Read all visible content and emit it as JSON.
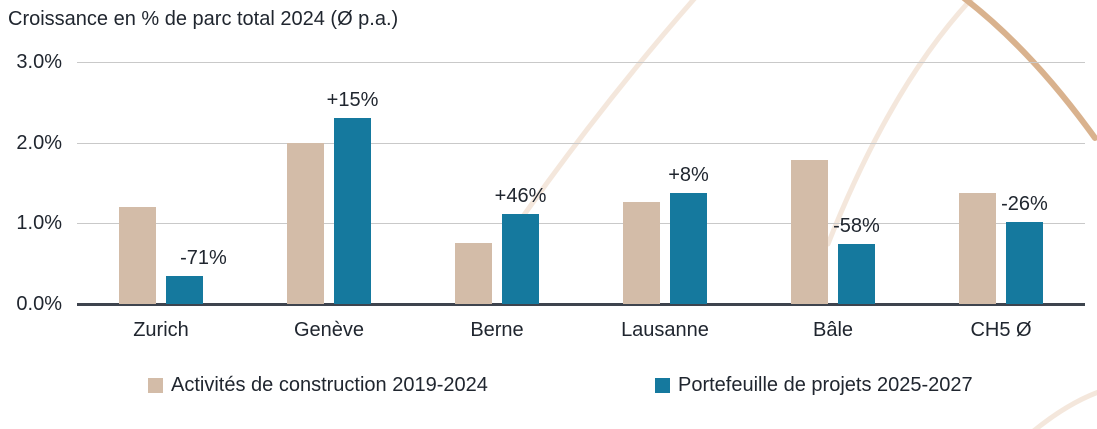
{
  "chart_data": {
    "type": "bar",
    "title": "Croissance en % de parc total 2024 (Ø p.a.)",
    "categories": [
      "Zurich",
      "Genève",
      "Berne",
      "Lausanne",
      "Bâle",
      "CH5 Ø"
    ],
    "series": [
      {
        "name": "Activités de construction 2019-2024",
        "color": "#D3BCA8",
        "values": [
          1.2,
          2.0,
          0.76,
          1.27,
          1.78,
          1.38
        ]
      },
      {
        "name": "Portefeuille de projets 2025-2027",
        "color": "#15799E",
        "values": [
          0.35,
          2.3,
          1.11,
          1.38,
          0.74,
          1.02
        ]
      }
    ],
    "point_labels": [
      "-71%",
      "+15%",
      "+46%",
      "+8%",
      "-58%",
      "-26%"
    ],
    "y_ticks": [
      {
        "label": "3.0%",
        "value": 3.0
      },
      {
        "label": "2.0%",
        "value": 2.0
      },
      {
        "label": "1.0%",
        "value": 1.0
      },
      {
        "label": "0.0%",
        "value": 0.0
      }
    ],
    "ylim": [
      0,
      3
    ],
    "xlabel": "",
    "ylabel": "",
    "grid": "horizontal",
    "legend_position": "bottom"
  },
  "palette": {
    "text": "#20262F",
    "gridline": "#C9C9C9",
    "axis_line": "#3E444E",
    "background": "#FFFFFF",
    "decor_light": "#F4E7DC",
    "decor_dark": "#D9B28E"
  }
}
